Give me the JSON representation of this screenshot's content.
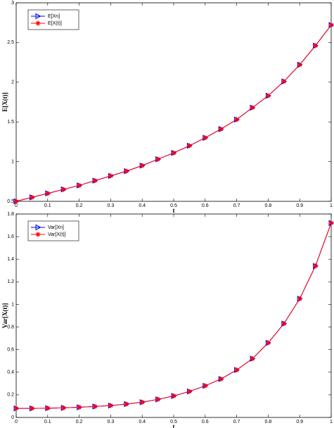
{
  "chart_data": [
    {
      "type": "line",
      "xlabel": "t",
      "ylabel": "E[X(t)]",
      "x": [
        0,
        0.05,
        0.1,
        0.15,
        0.2,
        0.25,
        0.3,
        0.35,
        0.4,
        0.45,
        0.5,
        0.55,
        0.6,
        0.65,
        0.7,
        0.75,
        0.8,
        0.85,
        0.9,
        0.95,
        1
      ],
      "xlim": [
        0,
        1
      ],
      "xticks": [
        0,
        0.1,
        0.2,
        0.3,
        0.4,
        0.5,
        0.6,
        0.7,
        0.8,
        0.9,
        1
      ],
      "ylim": [
        0.5,
        3
      ],
      "yticks": [
        0.5,
        1,
        1.5,
        2,
        2.5,
        3
      ],
      "legend": "upper left",
      "series": [
        {
          "name": "E[Xn]",
          "color": "#0000ff",
          "marker": "triangle-right",
          "values": [
            0.5,
            0.55,
            0.6,
            0.65,
            0.7,
            0.76,
            0.82,
            0.88,
            0.95,
            1.03,
            1.11,
            1.2,
            1.3,
            1.41,
            1.53,
            1.68,
            1.83,
            2.01,
            2.22,
            2.46,
            2.72
          ]
        },
        {
          "name": "E[X(t)]",
          "color": "#ff0000",
          "marker": "star",
          "values": [
            0.5,
            0.55,
            0.6,
            0.65,
            0.7,
            0.76,
            0.82,
            0.88,
            0.95,
            1.03,
            1.11,
            1.2,
            1.3,
            1.41,
            1.53,
            1.68,
            1.83,
            2.01,
            2.22,
            2.46,
            2.72
          ]
        }
      ]
    },
    {
      "type": "line",
      "xlabel": "t",
      "ylabel": "Var[X(t)]",
      "x": [
        0,
        0.05,
        0.1,
        0.15,
        0.2,
        0.25,
        0.3,
        0.35,
        0.4,
        0.45,
        0.5,
        0.55,
        0.6,
        0.65,
        0.7,
        0.75,
        0.8,
        0.85,
        0.9,
        0.95,
        1
      ],
      "xlim": [
        0,
        1
      ],
      "xticks": [
        0,
        0.1,
        0.2,
        0.3,
        0.4,
        0.5,
        0.6,
        0.7,
        0.8,
        0.9,
        1
      ],
      "ylim": [
        0,
        1.8
      ],
      "yticks": [
        0,
        0.2,
        0.4,
        0.6,
        0.8,
        1,
        1.2,
        1.4,
        1.6,
        1.8
      ],
      "legend": "upper left",
      "series": [
        {
          "name": "Var[Xn]",
          "color": "#0000ff",
          "marker": "triangle-right",
          "values": [
            0.08,
            0.08,
            0.082,
            0.085,
            0.09,
            0.097,
            0.105,
            0.118,
            0.135,
            0.16,
            0.19,
            0.23,
            0.28,
            0.34,
            0.42,
            0.52,
            0.66,
            0.83,
            1.05,
            1.34,
            1.72
          ]
        },
        {
          "name": "Var[X(t)]",
          "color": "#ff0000",
          "marker": "star",
          "values": [
            0.08,
            0.08,
            0.082,
            0.085,
            0.09,
            0.097,
            0.105,
            0.118,
            0.135,
            0.16,
            0.19,
            0.23,
            0.28,
            0.34,
            0.42,
            0.52,
            0.66,
            0.83,
            1.05,
            1.34,
            1.72
          ]
        }
      ]
    }
  ]
}
